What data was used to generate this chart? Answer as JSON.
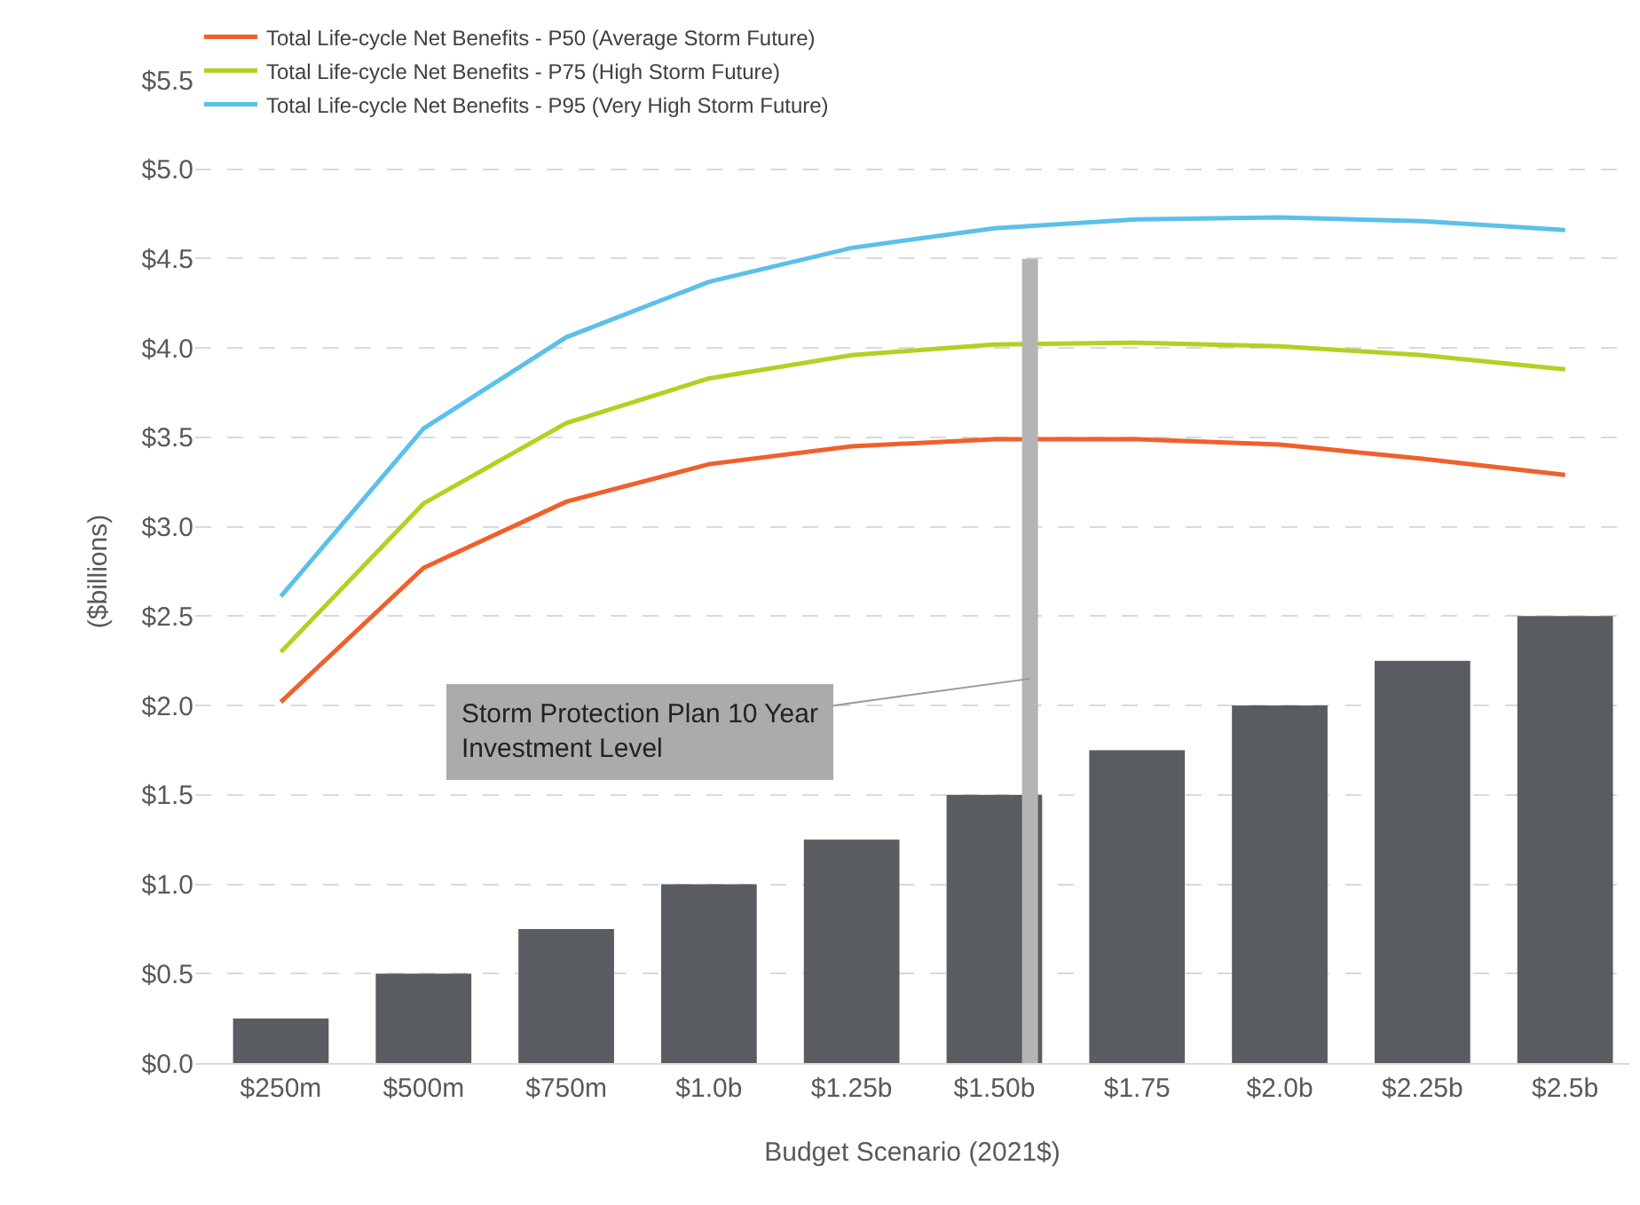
{
  "chart_data": {
    "type": "bar",
    "xlabel": "Budget Scenario (2021$)",
    "ylabel": "($billions)",
    "categories": [
      "$250m",
      "$500m",
      "$750m",
      "$1.0b",
      "$1.25b",
      "$1.50b",
      "$1.75",
      "$2.0b",
      "$2.25b",
      "$2.5b"
    ],
    "series": [
      {
        "color": "#595c60",
        "values": [
          0.25,
          0.5,
          0.75,
          1.0,
          1.25,
          1.5,
          1.75,
          2.0,
          2.25,
          2.5
        ]
      },
      {
        "type": "line",
        "name": "Total Life-cycle Net Benefits - P50 (Average Storm Future)",
        "color": "#f0602c",
        "values": [
          2.02,
          2.77,
          3.14,
          3.35,
          3.45,
          3.49,
          3.49,
          3.46,
          3.38,
          3.29
        ]
      },
      {
        "type": "line",
        "name": "Total Life-cycle Net Benefits - P75 (High Storm Future)",
        "color": "#b5cf22",
        "values": [
          2.3,
          3.13,
          3.58,
          3.83,
          3.96,
          4.02,
          4.03,
          4.01,
          3.96,
          3.88
        ]
      },
      {
        "type": "line",
        "name": "Total Life-cycle Net Benefits - P95 (Very High Storm Future)",
        "color": "#5bc0ea",
        "values": [
          2.61,
          3.55,
          4.06,
          4.37,
          4.56,
          4.67,
          4.72,
          4.73,
          4.71,
          4.66
        ]
      }
    ],
    "ylim": [
      0,
      5.5
    ],
    "yticks": [
      {
        "value": 0,
        "label": "$0.0"
      },
      {
        "value": 0.5,
        "label": "$0.5"
      },
      {
        "value": 1,
        "label": "$1.0"
      },
      {
        "value": 1.5,
        "label": "$1.5"
      },
      {
        "value": 2,
        "label": "$2.0"
      },
      {
        "value": 2.5,
        "label": "$2.5"
      },
      {
        "value": 3,
        "label": "$3.0"
      },
      {
        "value": 3.5,
        "label": "$3.5"
      },
      {
        "value": 4,
        "label": "$4.0"
      },
      {
        "value": 4.5,
        "label": "$4.5"
      },
      {
        "value": 5,
        "label": "$5.0"
      },
      {
        "value": 5.5,
        "label": "$5.5"
      }
    ],
    "ref_lines": [
      {
        "axis": "x",
        "value": "$1.50b",
        "label": "Storm Protection Plan 10 Year Investment Level",
        "color": "#b4b4b4"
      }
    ],
    "grid": "y",
    "legend": "top left",
    "marker": "none",
    "line_style": "solid"
  }
}
